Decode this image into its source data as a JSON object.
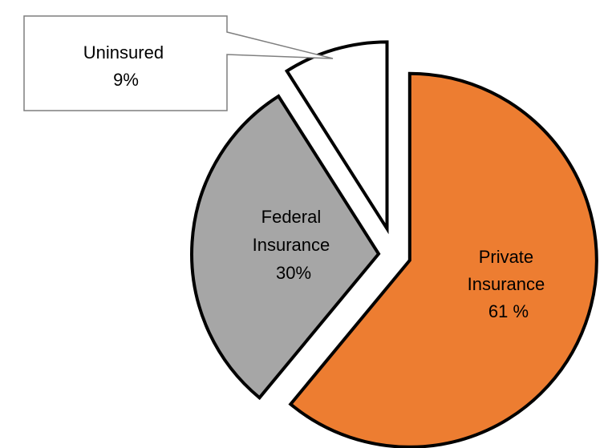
{
  "chart_data": {
    "type": "pie",
    "slices": [
      {
        "label_lines": [
          "Private",
          "Insurance",
          "61 %"
        ],
        "value": 61,
        "color": "#ED7D31"
      },
      {
        "label_lines": [
          "Federal",
          "Insurance",
          "30%"
        ],
        "value": 30,
        "color": "#A6A6A6"
      },
      {
        "label_lines": [
          "Uninsured",
          "9%"
        ],
        "value": 9,
        "color": "#FFFFFF"
      }
    ],
    "exploded": true,
    "start_angle_deg": 0,
    "direction": "clockwise",
    "outline_color": "#000000",
    "callout_for": "Uninsured"
  }
}
